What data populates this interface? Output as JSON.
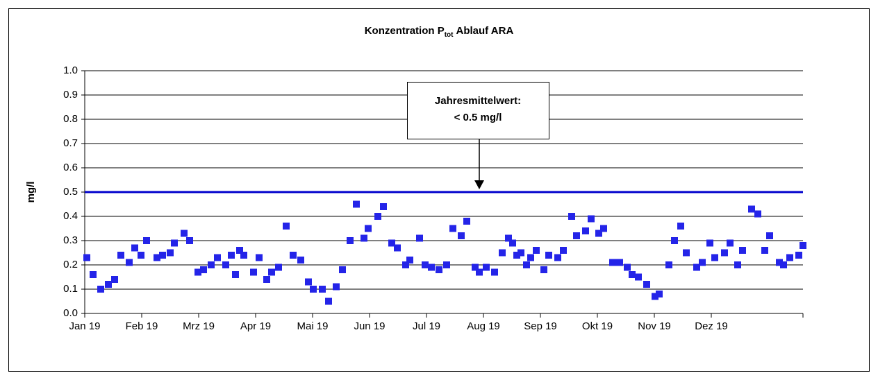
{
  "chart_data": {
    "type": "scatter",
    "title_parts": [
      "Konzentration P",
      "tot",
      "Ablauf ARA"
    ],
    "y_label": "mg/l",
    "annotation": [
      "Jahresmittelwert:",
      "< 0.5 mg/l"
    ],
    "reference_line": {
      "value": 0.5,
      "color": "#0000cc"
    },
    "color": "#2424e8",
    "grid": true,
    "xlim": [
      0,
      1034
    ],
    "xticks": [
      {
        "value": 0,
        "label": "Jan 19"
      },
      {
        "value": 82,
        "label": "Feb 19"
      },
      {
        "value": 164,
        "label": "Mrz 19"
      },
      {
        "value": 246,
        "label": "Apr 19"
      },
      {
        "value": 328,
        "label": "Mai 19"
      },
      {
        "value": 410,
        "label": "Jun 19"
      },
      {
        "value": 492,
        "label": "Jul 19"
      },
      {
        "value": 574,
        "label": "Aug 19"
      },
      {
        "value": 656,
        "label": "Sep 19"
      },
      {
        "value": 738,
        "label": "Okt 19"
      },
      {
        "value": 820,
        "label": "Nov 19"
      },
      {
        "value": 902,
        "label": "Dez 19"
      }
    ],
    "ylim": [
      0,
      1
    ],
    "yticks": [
      {
        "value": 0,
        "label": "0.0"
      },
      0.1,
      0.2,
      0.3,
      0.4,
      0.5,
      0.6,
      0.7,
      0.8,
      0.9,
      {
        "value": 1,
        "label": "1.0"
      }
    ],
    "x": [
      3,
      12,
      23,
      34,
      43,
      52,
      64,
      72,
      81,
      89,
      104,
      112,
      123,
      129,
      143,
      151,
      163,
      171,
      182,
      191,
      203,
      211,
      217,
      223,
      229,
      243,
      251,
      262,
      269,
      279,
      290,
      300,
      311,
      322,
      329,
      342,
      351,
      362,
      371,
      382,
      391,
      402,
      408,
      422,
      430,
      442,
      450,
      462,
      468,
      482,
      490,
      499,
      510,
      521,
      530,
      542,
      550,
      562,
      568,
      578,
      590,
      601,
      610,
      616,
      622,
      628,
      636,
      642,
      650,
      661,
      668,
      681,
      689,
      701,
      708,
      721,
      729,
      740,
      747,
      760,
      770,
      781,
      788,
      797,
      809,
      821,
      827,
      841,
      849,
      858,
      866,
      881,
      889,
      900,
      907,
      921,
      929,
      940,
      947,
      960,
      969,
      979,
      986,
      1000,
      1006,
      1015,
      1028,
      1034
    ],
    "values": [
      0.23,
      0.16,
      0.1,
      0.12,
      0.14,
      0.24,
      0.21,
      0.27,
      0.24,
      0.3,
      0.23,
      0.24,
      0.25,
      0.29,
      0.33,
      0.3,
      0.17,
      0.18,
      0.2,
      0.23,
      0.2,
      0.24,
      0.16,
      0.26,
      0.24,
      0.17,
      0.23,
      0.14,
      0.17,
      0.19,
      0.36,
      0.24,
      0.22,
      0.13,
      0.1,
      0.1,
      0.05,
      0.11,
      0.18,
      0.3,
      0.45,
      0.31,
      0.35,
      0.4,
      0.44,
      0.29,
      0.27,
      0.2,
      0.22,
      0.31,
      0.2,
      0.19,
      0.18,
      0.2,
      0.35,
      0.32,
      0.38,
      0.19,
      0.17,
      0.19,
      0.17,
      0.25,
      0.31,
      0.29,
      0.24,
      0.25,
      0.2,
      0.23,
      0.26,
      0.18,
      0.24,
      0.23,
      0.26,
      0.4,
      0.32,
      0.34,
      0.39,
      0.33,
      0.35,
      0.21,
      0.21,
      0.19,
      0.16,
      0.15,
      0.12,
      0.07,
      0.08,
      0.2,
      0.3,
      0.36,
      0.25,
      0.19,
      0.21,
      0.29,
      0.23,
      0.25,
      0.29,
      0.2,
      0.26,
      0.43,
      0.41,
      0.26,
      0.32,
      0.21,
      0.2,
      0.23,
      0.24,
      0.28
    ]
  }
}
